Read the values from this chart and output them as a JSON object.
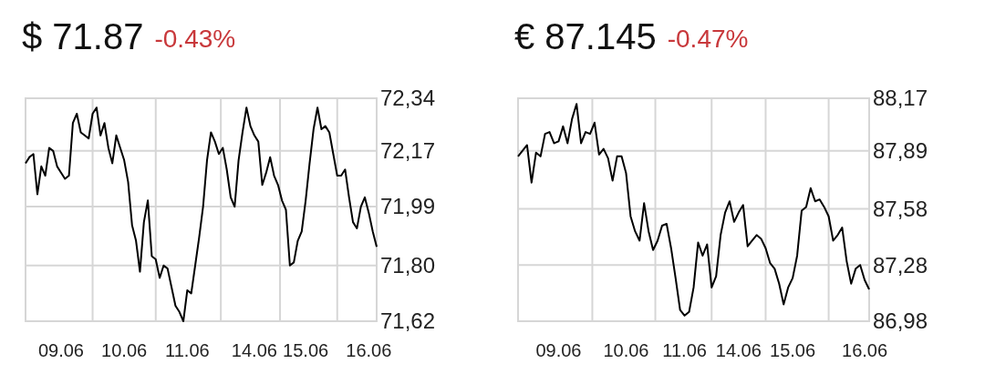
{
  "chart_data": [
    {
      "type": "line",
      "title": "$ 71.87",
      "subtitle": "-0.43%",
      "grid": true,
      "categories": [
        null,
        null,
        null,
        null,
        null,
        null,
        null,
        null,
        null,
        "09.06",
        null,
        null,
        null,
        null,
        null,
        null,
        null,
        null,
        null,
        null,
        null,
        null,
        null,
        null,
        null,
        "10.06",
        null,
        null,
        null,
        null,
        null,
        null,
        null,
        null,
        null,
        null,
        null,
        null,
        null,
        null,
        null,
        "11.06",
        null,
        null,
        null,
        null,
        null,
        null,
        null,
        null,
        null,
        null,
        null,
        null,
        null,
        null,
        null,
        null,
        "14.06",
        null,
        null,
        null,
        null,
        null,
        null,
        null,
        null,
        null,
        null,
        null,
        null,
        "15.06",
        null,
        null,
        null,
        null,
        null,
        null,
        null,
        null,
        null,
        null,
        null,
        null,
        null,
        null,
        null,
        "16.06",
        null,
        null
      ],
      "ylim": [
        71.62,
        72.34
      ],
      "yticks": [
        {
          "value": 72.34,
          "label": "72,34"
        },
        {
          "value": 72.17,
          "label": "72,17"
        },
        {
          "value": 71.99,
          "label": "71,99"
        },
        {
          "value": 71.8,
          "label": "71,80"
        },
        {
          "value": 71.62,
          "label": "71,62"
        }
      ],
      "series": [
        {
          "color": "#000000",
          "values": [
            72.13,
            72.15,
            72.16,
            72.03,
            72.12,
            72.09,
            72.18,
            72.17,
            72.12,
            72.1,
            72.08,
            72.09,
            72.26,
            72.29,
            72.23,
            72.22,
            72.21,
            72.29,
            72.31,
            72.22,
            72.26,
            72.18,
            72.13,
            72.22,
            72.18,
            72.14,
            72.07,
            71.93,
            71.88,
            71.78,
            71.94,
            72.01,
            71.83,
            71.82,
            71.76,
            71.8,
            71.79,
            71.73,
            71.67,
            71.65,
            71.62,
            71.72,
            71.71,
            71.8,
            71.89,
            71.99,
            72.14,
            72.23,
            72.2,
            72.16,
            72.18,
            72.11,
            72.02,
            71.99,
            72.14,
            72.23,
            72.31,
            72.25,
            72.22,
            72.2,
            72.06,
            72.1,
            72.15,
            72.09,
            72.06,
            72.01,
            71.98,
            71.8,
            71.81,
            71.88,
            71.91,
            72.01,
            72.13,
            72.24,
            72.31,
            72.24,
            72.25,
            72.23,
            72.16,
            72.09,
            72.09,
            72.11,
            72.02,
            71.94,
            71.92,
            71.99,
            72.02,
            71.97,
            71.91,
            71.86
          ]
        }
      ]
    },
    {
      "type": "line",
      "title": "€ 87.145",
      "subtitle": "-0.47%",
      "grid": true,
      "categories": [
        null,
        null,
        null,
        null,
        null,
        null,
        null,
        null,
        null,
        "09.06",
        null,
        null,
        null,
        null,
        null,
        null,
        null,
        null,
        null,
        null,
        null,
        null,
        null,
        null,
        "10.06",
        null,
        null,
        null,
        null,
        null,
        null,
        null,
        null,
        null,
        null,
        null,
        null,
        "11.06",
        null,
        null,
        null,
        null,
        null,
        null,
        null,
        null,
        null,
        null,
        null,
        "14.06",
        null,
        null,
        null,
        null,
        null,
        null,
        null,
        null,
        null,
        null,
        null,
        "15.06",
        null,
        null,
        null,
        null,
        null,
        null,
        null,
        null,
        null,
        null,
        null,
        null,
        null,
        null,
        null,
        "16.06",
        null
      ],
      "ylim": [
        86.98,
        88.17
      ],
      "yticks": [
        {
          "value": 88.17,
          "label": "88,17"
        },
        {
          "value": 87.89,
          "label": "87,89"
        },
        {
          "value": 87.58,
          "label": "87,58"
        },
        {
          "value": 87.28,
          "label": "87,28"
        },
        {
          "value": 86.98,
          "label": "86,98"
        }
      ],
      "series": [
        {
          "color": "#000000",
          "values": [
            87.86,
            87.89,
            87.92,
            87.72,
            87.88,
            87.86,
            87.98,
            87.99,
            87.93,
            87.94,
            88.02,
            87.93,
            88.06,
            88.14,
            87.93,
            87.99,
            87.98,
            88.04,
            87.87,
            87.9,
            87.85,
            87.73,
            87.86,
            87.86,
            87.77,
            87.54,
            87.46,
            87.41,
            87.61,
            87.46,
            87.36,
            87.41,
            87.49,
            87.5,
            87.37,
            87.21,
            87.04,
            87.01,
            87.03,
            87.16,
            87.4,
            87.33,
            87.39,
            87.16,
            87.22,
            87.44,
            87.56,
            87.62,
            87.51,
            87.56,
            87.6,
            87.38,
            87.41,
            87.44,
            87.42,
            87.37,
            87.29,
            87.26,
            87.18,
            87.07,
            87.16,
            87.21,
            87.33,
            87.57,
            87.59,
            87.69,
            87.62,
            87.63,
            87.59,
            87.54,
            87.41,
            87.44,
            87.48,
            87.3,
            87.18,
            87.26,
            87.28,
            87.2,
            87.15
          ]
        }
      ]
    }
  ]
}
